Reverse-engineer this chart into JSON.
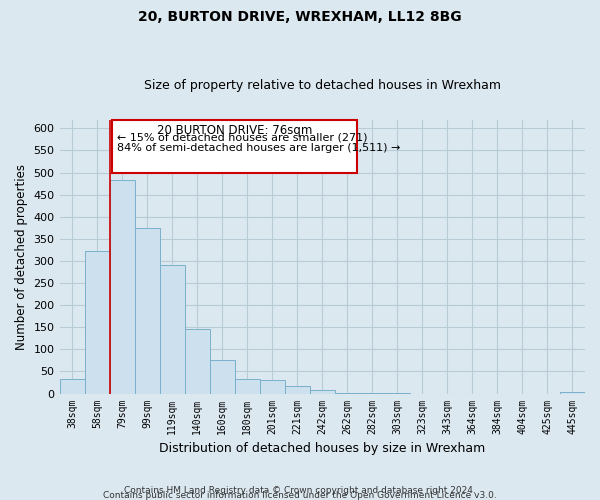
{
  "title": "20, BURTON DRIVE, WREXHAM, LL12 8BG",
  "subtitle": "Size of property relative to detached houses in Wrexham",
  "xlabel": "Distribution of detached houses by size in Wrexham",
  "ylabel": "Number of detached properties",
  "bar_labels": [
    "38sqm",
    "58sqm",
    "79sqm",
    "99sqm",
    "119sqm",
    "140sqm",
    "160sqm",
    "180sqm",
    "201sqm",
    "221sqm",
    "242sqm",
    "262sqm",
    "282sqm",
    "303sqm",
    "323sqm",
    "343sqm",
    "364sqm",
    "384sqm",
    "404sqm",
    "425sqm",
    "445sqm"
  ],
  "bar_values": [
    32,
    322,
    483,
    374,
    290,
    145,
    75,
    32,
    30,
    17,
    8,
    2,
    1,
    1,
    0,
    0,
    0,
    0,
    0,
    0,
    3
  ],
  "bar_color": "#cce0ee",
  "bar_edge_color": "#7ab0cc",
  "vline_color": "#cc0000",
  "annotation_title": "20 BURTON DRIVE: 76sqm",
  "annotation_line1": "← 15% of detached houses are smaller (271)",
  "annotation_line2": "84% of semi-detached houses are larger (1,511) →",
  "box_facecolor": "#ffffff",
  "box_edgecolor": "#cc0000",
  "bg_color": "#dce8f0",
  "plot_bg_color": "#dce8f0",
  "grid_color": "#b8ccd8",
  "ylim": [
    0,
    620
  ],
  "yticks": [
    0,
    50,
    100,
    150,
    200,
    250,
    300,
    350,
    400,
    450,
    500,
    550,
    600
  ],
  "footer1": "Contains HM Land Registry data © Crown copyright and database right 2024.",
  "footer2": "Contains public sector information licensed under the Open Government Licence v3.0."
}
